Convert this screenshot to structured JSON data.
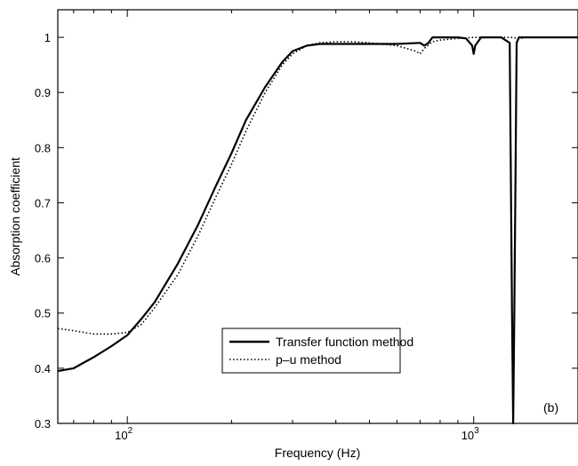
{
  "chart_data": {
    "type": "line",
    "title": "",
    "xlabel": "Frequency (Hz)",
    "ylabel": "Absorption coefficient",
    "x_scale": "log",
    "xlim": [
      63,
      2000
    ],
    "ylim": [
      0.3,
      1.05
    ],
    "x_tick_labels": [
      {
        "value": 100,
        "base": "10",
        "exp": "2"
      },
      {
        "value": 1000,
        "base": "10",
        "exp": "3"
      }
    ],
    "y_ticks": [
      0.3,
      0.4,
      0.5,
      0.6,
      0.7,
      0.8,
      0.9,
      1
    ],
    "y_tick_labels": [
      "0.3",
      "0.4",
      "0.5",
      "0.6",
      "0.7",
      "0.8",
      "0.9",
      "1"
    ],
    "grid": false,
    "legend_position": "bottom-center",
    "panel_label": "(b)",
    "series": [
      {
        "name": "Transfer function method",
        "line_style": "solid",
        "color": "#000000",
        "x": [
          63,
          70,
          80,
          90,
          100,
          110,
          120,
          140,
          160,
          180,
          200,
          220,
          250,
          280,
          300,
          330,
          360,
          400,
          450,
          500,
          600,
          700,
          720,
          740,
          760,
          800,
          900,
          950,
          990,
          1000,
          1010,
          1050,
          1100,
          1200,
          1270,
          1290,
          1300,
          1310,
          1330,
          1350,
          1400,
          1500,
          1700,
          2000
        ],
        "y": [
          0.395,
          0.4,
          0.42,
          0.44,
          0.46,
          0.49,
          0.52,
          0.59,
          0.66,
          0.73,
          0.79,
          0.85,
          0.91,
          0.955,
          0.975,
          0.985,
          0.988,
          0.988,
          0.988,
          0.988,
          0.988,
          0.99,
          0.985,
          0.99,
          1.0,
          1.0,
          1.0,
          0.998,
          0.985,
          0.97,
          0.985,
          1.0,
          1.0,
          1.0,
          0.99,
          0.5,
          0.3,
          0.5,
          0.99,
          1.0,
          1.0,
          1.0,
          1.0,
          1.0
        ]
      },
      {
        "name": "p–u method",
        "line_style": "dotted",
        "color": "#000000",
        "x": [
          63,
          70,
          80,
          90,
          100,
          110,
          120,
          140,
          160,
          180,
          200,
          220,
          250,
          280,
          300,
          330,
          360,
          400,
          450,
          500,
          600,
          680,
          700,
          720,
          760,
          800,
          900,
          1000,
          1100,
          1200,
          1300,
          1350,
          1400,
          1500,
          1700,
          2000
        ],
        "y": [
          0.472,
          0.468,
          0.462,
          0.462,
          0.465,
          0.48,
          0.51,
          0.57,
          0.64,
          0.71,
          0.77,
          0.83,
          0.9,
          0.95,
          0.97,
          0.985,
          0.99,
          0.992,
          0.992,
          0.99,
          0.985,
          0.975,
          0.97,
          0.98,
          0.992,
          0.995,
          0.998,
          1.0,
          1.0,
          1.0,
          1.0,
          0.997,
          1.0,
          1.0,
          1.0,
          1.0
        ]
      }
    ]
  }
}
